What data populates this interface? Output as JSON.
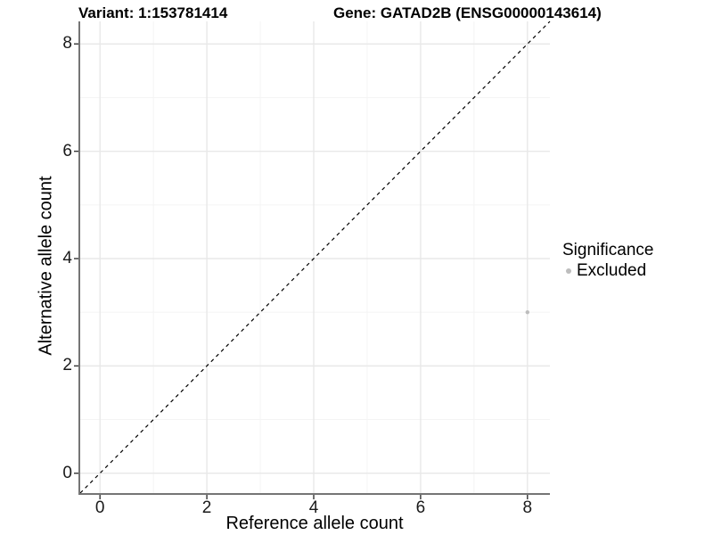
{
  "title": {
    "variant": "Variant: 1:153781414",
    "gene": "Gene: GATAD2B (ENSG00000143614)"
  },
  "x_axis": {
    "label": "Reference allele count"
  },
  "y_axis": {
    "label": "Alternative allele count"
  },
  "legend": {
    "title": "Significance",
    "items": [
      {
        "label": "Excluded",
        "marker": "circle-icon",
        "color": "#bdbdbd"
      }
    ]
  },
  "colors": {
    "background": "#ffffff",
    "major_grid": "#e8e8e8",
    "minor_grid": "#f4f4f4",
    "axis_line": "#757575",
    "tick_mark": "#333333",
    "identity_line": "#000000",
    "point": "#bdbdbd",
    "text": "#000000"
  },
  "chart_data": {
    "type": "scatter",
    "title": "Variant: 1:153781414 / Gene: GATAD2B (ENSG00000143614)",
    "xlabel": "Reference allele count",
    "ylabel": "Alternative allele count",
    "xlim": [
      -0.37,
      8.42
    ],
    "ylim": [
      -0.37,
      8.42
    ],
    "x_major_ticks": [
      0,
      2,
      4,
      6,
      8
    ],
    "x_minor_ticks": [
      1,
      3,
      5,
      7
    ],
    "y_major_ticks": [
      0,
      2,
      4,
      6,
      8
    ],
    "y_minor_ticks": [
      1,
      3,
      5,
      7
    ],
    "grid": "on",
    "legend_position": "right",
    "series": [
      {
        "name": "Excluded",
        "color": "#bdbdbd",
        "points": [
          [
            8,
            3
          ]
        ]
      }
    ],
    "reference_line": {
      "type": "identity",
      "style": "dashed",
      "from": [
        -0.37,
        -0.37
      ],
      "to": [
        8.42,
        8.42
      ]
    }
  }
}
